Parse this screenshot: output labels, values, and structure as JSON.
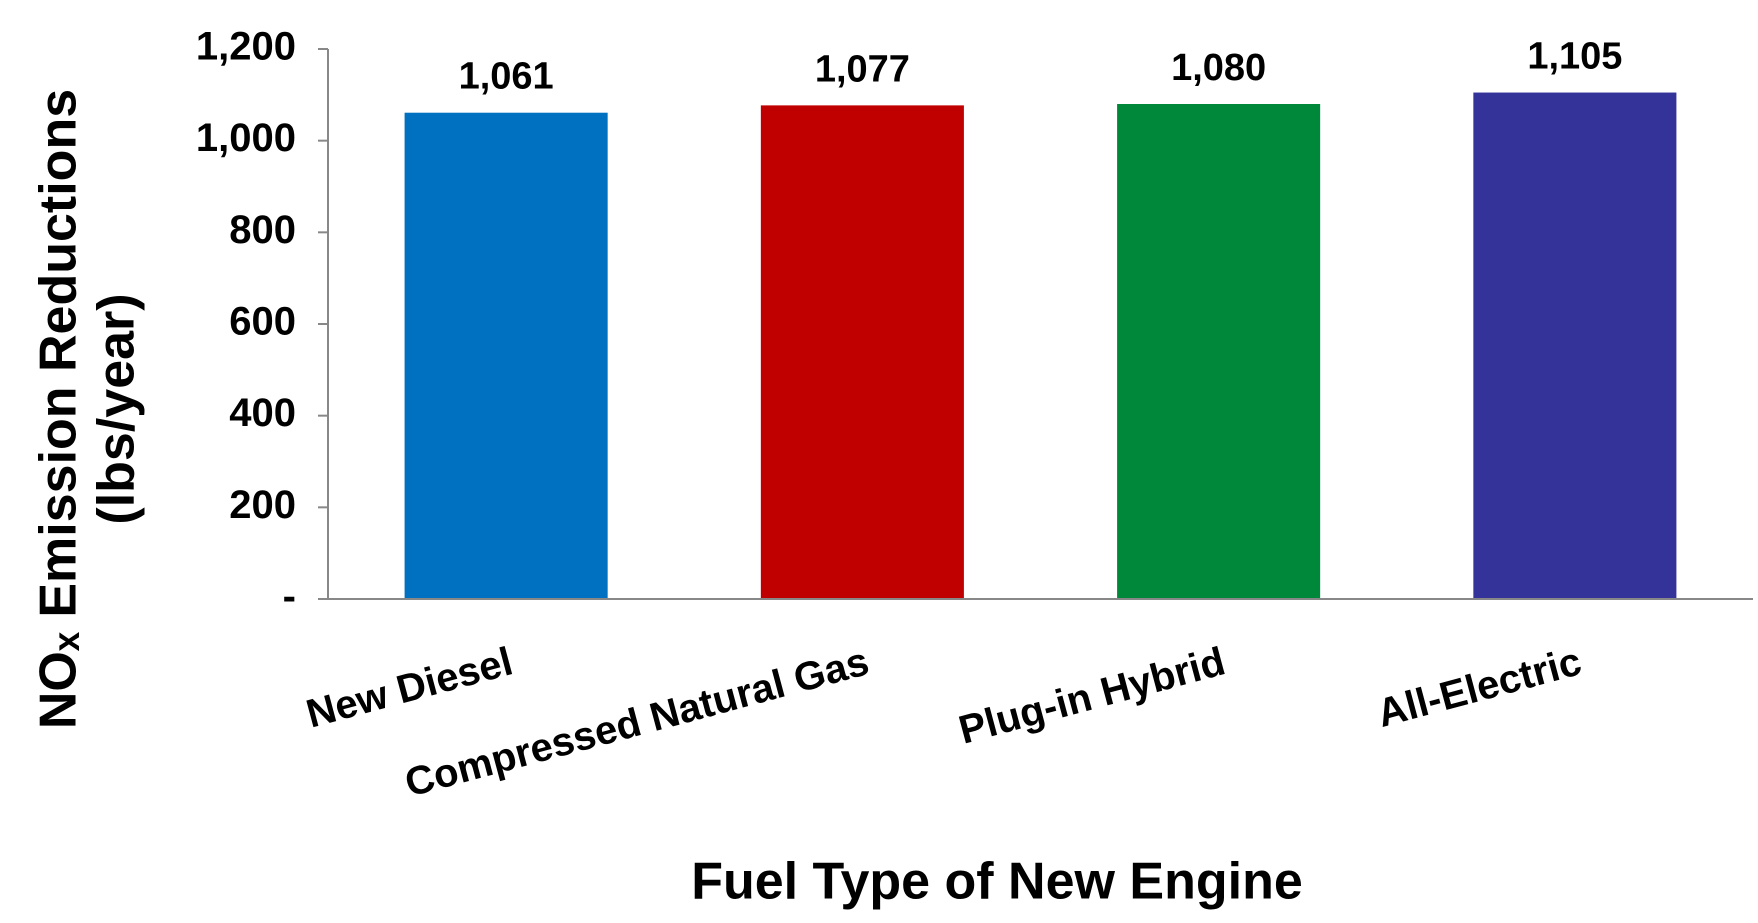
{
  "chart_data": {
    "type": "bar",
    "x_label": "Fuel Type of New Engine",
    "y_label": [
      "NOₓ Emission Reductions",
      "(lbs/year)"
    ],
    "categories": [
      "New Diesel",
      "Compressed Natural Gas",
      "Plug-in Hybrid",
      "All-Electric"
    ],
    "values": [
      1061,
      1077,
      1080,
      1105
    ],
    "value_labels": [
      "1,061",
      "1,077",
      "1,080",
      "1,105"
    ],
    "colors": [
      "#0070c0",
      "#c00000",
      "#00883a",
      "#333399"
    ],
    "ylim": [
      0,
      1200
    ],
    "yticks": [
      {
        "value": 0,
        "label": "-"
      },
      200,
      400,
      600,
      800,
      {
        "value": 1000,
        "label": "1,000"
      },
      {
        "value": 1200,
        "label": "1,200"
      }
    ],
    "grid": false
  }
}
